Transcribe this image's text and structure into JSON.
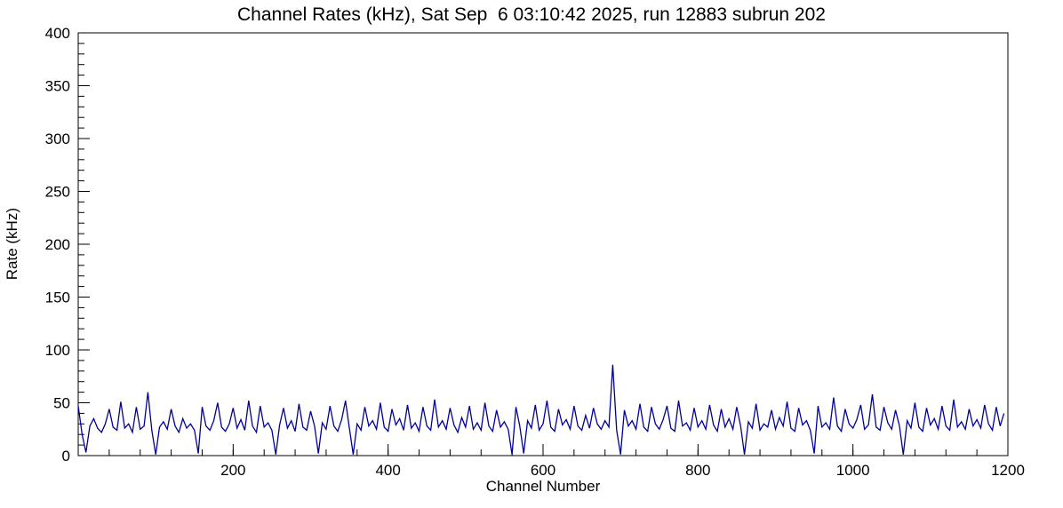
{
  "chart_data": {
    "type": "line",
    "title": "Channel Rates (kHz), Sat Sep  6 03:10:42 2025, run 12883 subrun 202",
    "xlabel": "Channel Number",
    "ylabel": "Rate (kHz)",
    "xlim": [
      0,
      1200
    ],
    "ylim": [
      0,
      400
    ],
    "x_major_ticks": [
      200,
      400,
      600,
      800,
      1000,
      1200
    ],
    "y_major_ticks": [
      0,
      50,
      100,
      150,
      200,
      250,
      300,
      350,
      400
    ],
    "x_minor_step": 40,
    "y_minor_step": 10,
    "grid": false,
    "legend": false,
    "line_color": "#000099",
    "series": [
      {
        "name": "channel_rates",
        "x_start": 0,
        "x_step": 5,
        "values": [
          47,
          20,
          3,
          28,
          35,
          26,
          22,
          30,
          44,
          27,
          24,
          51,
          26,
          30,
          22,
          46,
          25,
          28,
          60,
          24,
          1,
          27,
          32,
          25,
          44,
          28,
          22,
          35,
          26,
          30,
          24,
          2,
          46,
          28,
          24,
          33,
          50,
          27,
          23,
          30,
          45,
          26,
          34,
          24,
          52,
          28,
          22,
          47,
          27,
          31,
          24,
          1,
          29,
          45,
          26,
          33,
          23,
          49,
          27,
          24,
          42,
          28,
          2,
          31,
          25,
          47,
          28,
          23,
          34,
          52,
          26,
          1,
          30,
          24,
          46,
          28,
          33,
          25,
          50,
          27,
          23,
          44,
          29,
          35,
          24,
          48,
          26,
          31,
          23,
          46,
          28,
          24,
          53,
          27,
          33,
          25,
          45,
          29,
          22,
          36,
          27,
          47,
          25,
          31,
          24,
          50,
          28,
          23,
          43,
          27,
          32,
          25,
          1,
          46,
          28,
          2,
          33,
          26,
          48,
          24,
          30,
          52,
          27,
          23,
          44,
          29,
          34,
          25,
          47,
          28,
          24,
          38,
          26,
          45,
          30,
          25,
          33,
          27,
          86,
          24,
          1,
          43,
          28,
          33,
          25,
          49,
          27,
          23,
          46,
          30,
          25,
          34,
          47,
          26,
          23,
          52,
          28,
          31,
          24,
          45,
          27,
          33,
          25,
          48,
          29,
          23,
          44,
          27,
          35,
          25,
          46,
          28,
          1,
          32,
          26,
          49,
          24,
          30,
          27,
          43,
          25,
          36,
          28,
          51,
          26,
          23,
          45,
          29,
          33,
          24,
          2,
          47,
          27,
          31,
          25,
          55,
          28,
          23,
          44,
          30,
          26,
          34,
          48,
          25,
          29,
          58,
          27,
          24,
          46,
          31,
          25,
          43,
          28,
          1,
          33,
          26,
          50,
          27,
          23,
          45,
          29,
          35,
          25,
          47,
          28,
          24,
          53,
          27,
          32,
          25,
          44,
          28,
          34,
          26,
          48,
          30,
          24,
          46,
          28,
          40
        ]
      }
    ]
  }
}
